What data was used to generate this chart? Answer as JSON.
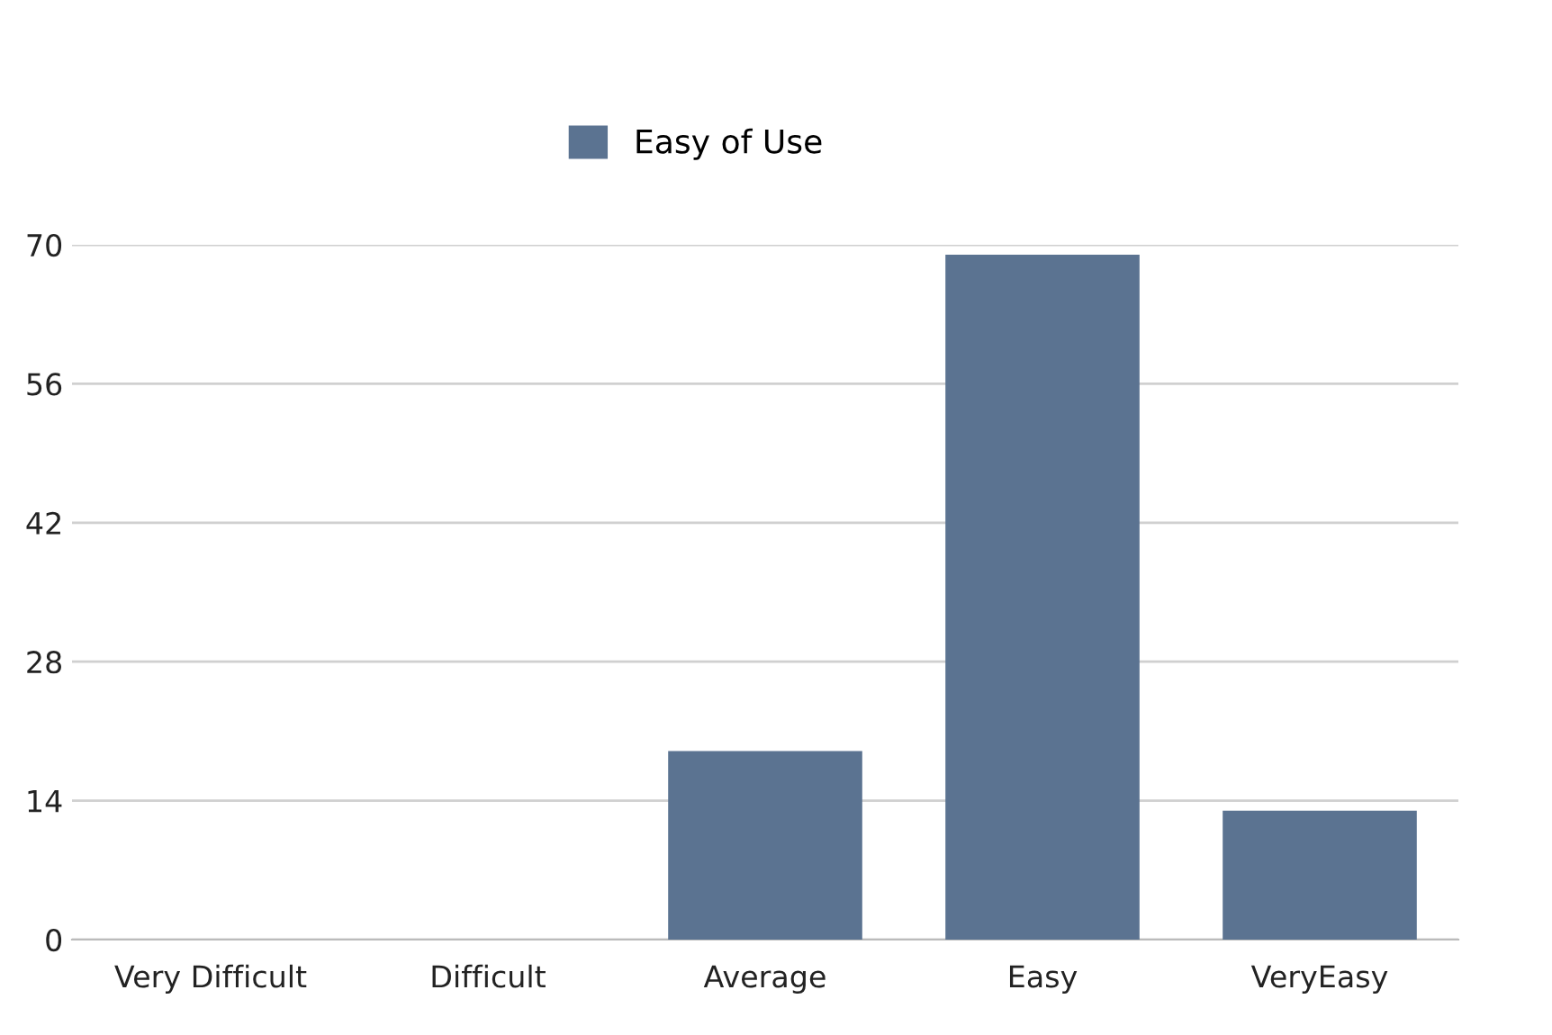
{
  "chart_data": {
    "type": "bar",
    "categories": [
      "Very Difficult",
      "Difficult",
      "Average",
      "Easy",
      "VeryEasy"
    ],
    "series": [
      {
        "name": "Easy of Use",
        "color": "#5b7391",
        "values": [
          0,
          0,
          19,
          69,
          13
        ]
      }
    ],
    "ylim": [
      0,
      70
    ],
    "yticks": [
      0,
      14,
      28,
      42,
      56,
      70
    ],
    "grid": "y",
    "legend": "top"
  }
}
